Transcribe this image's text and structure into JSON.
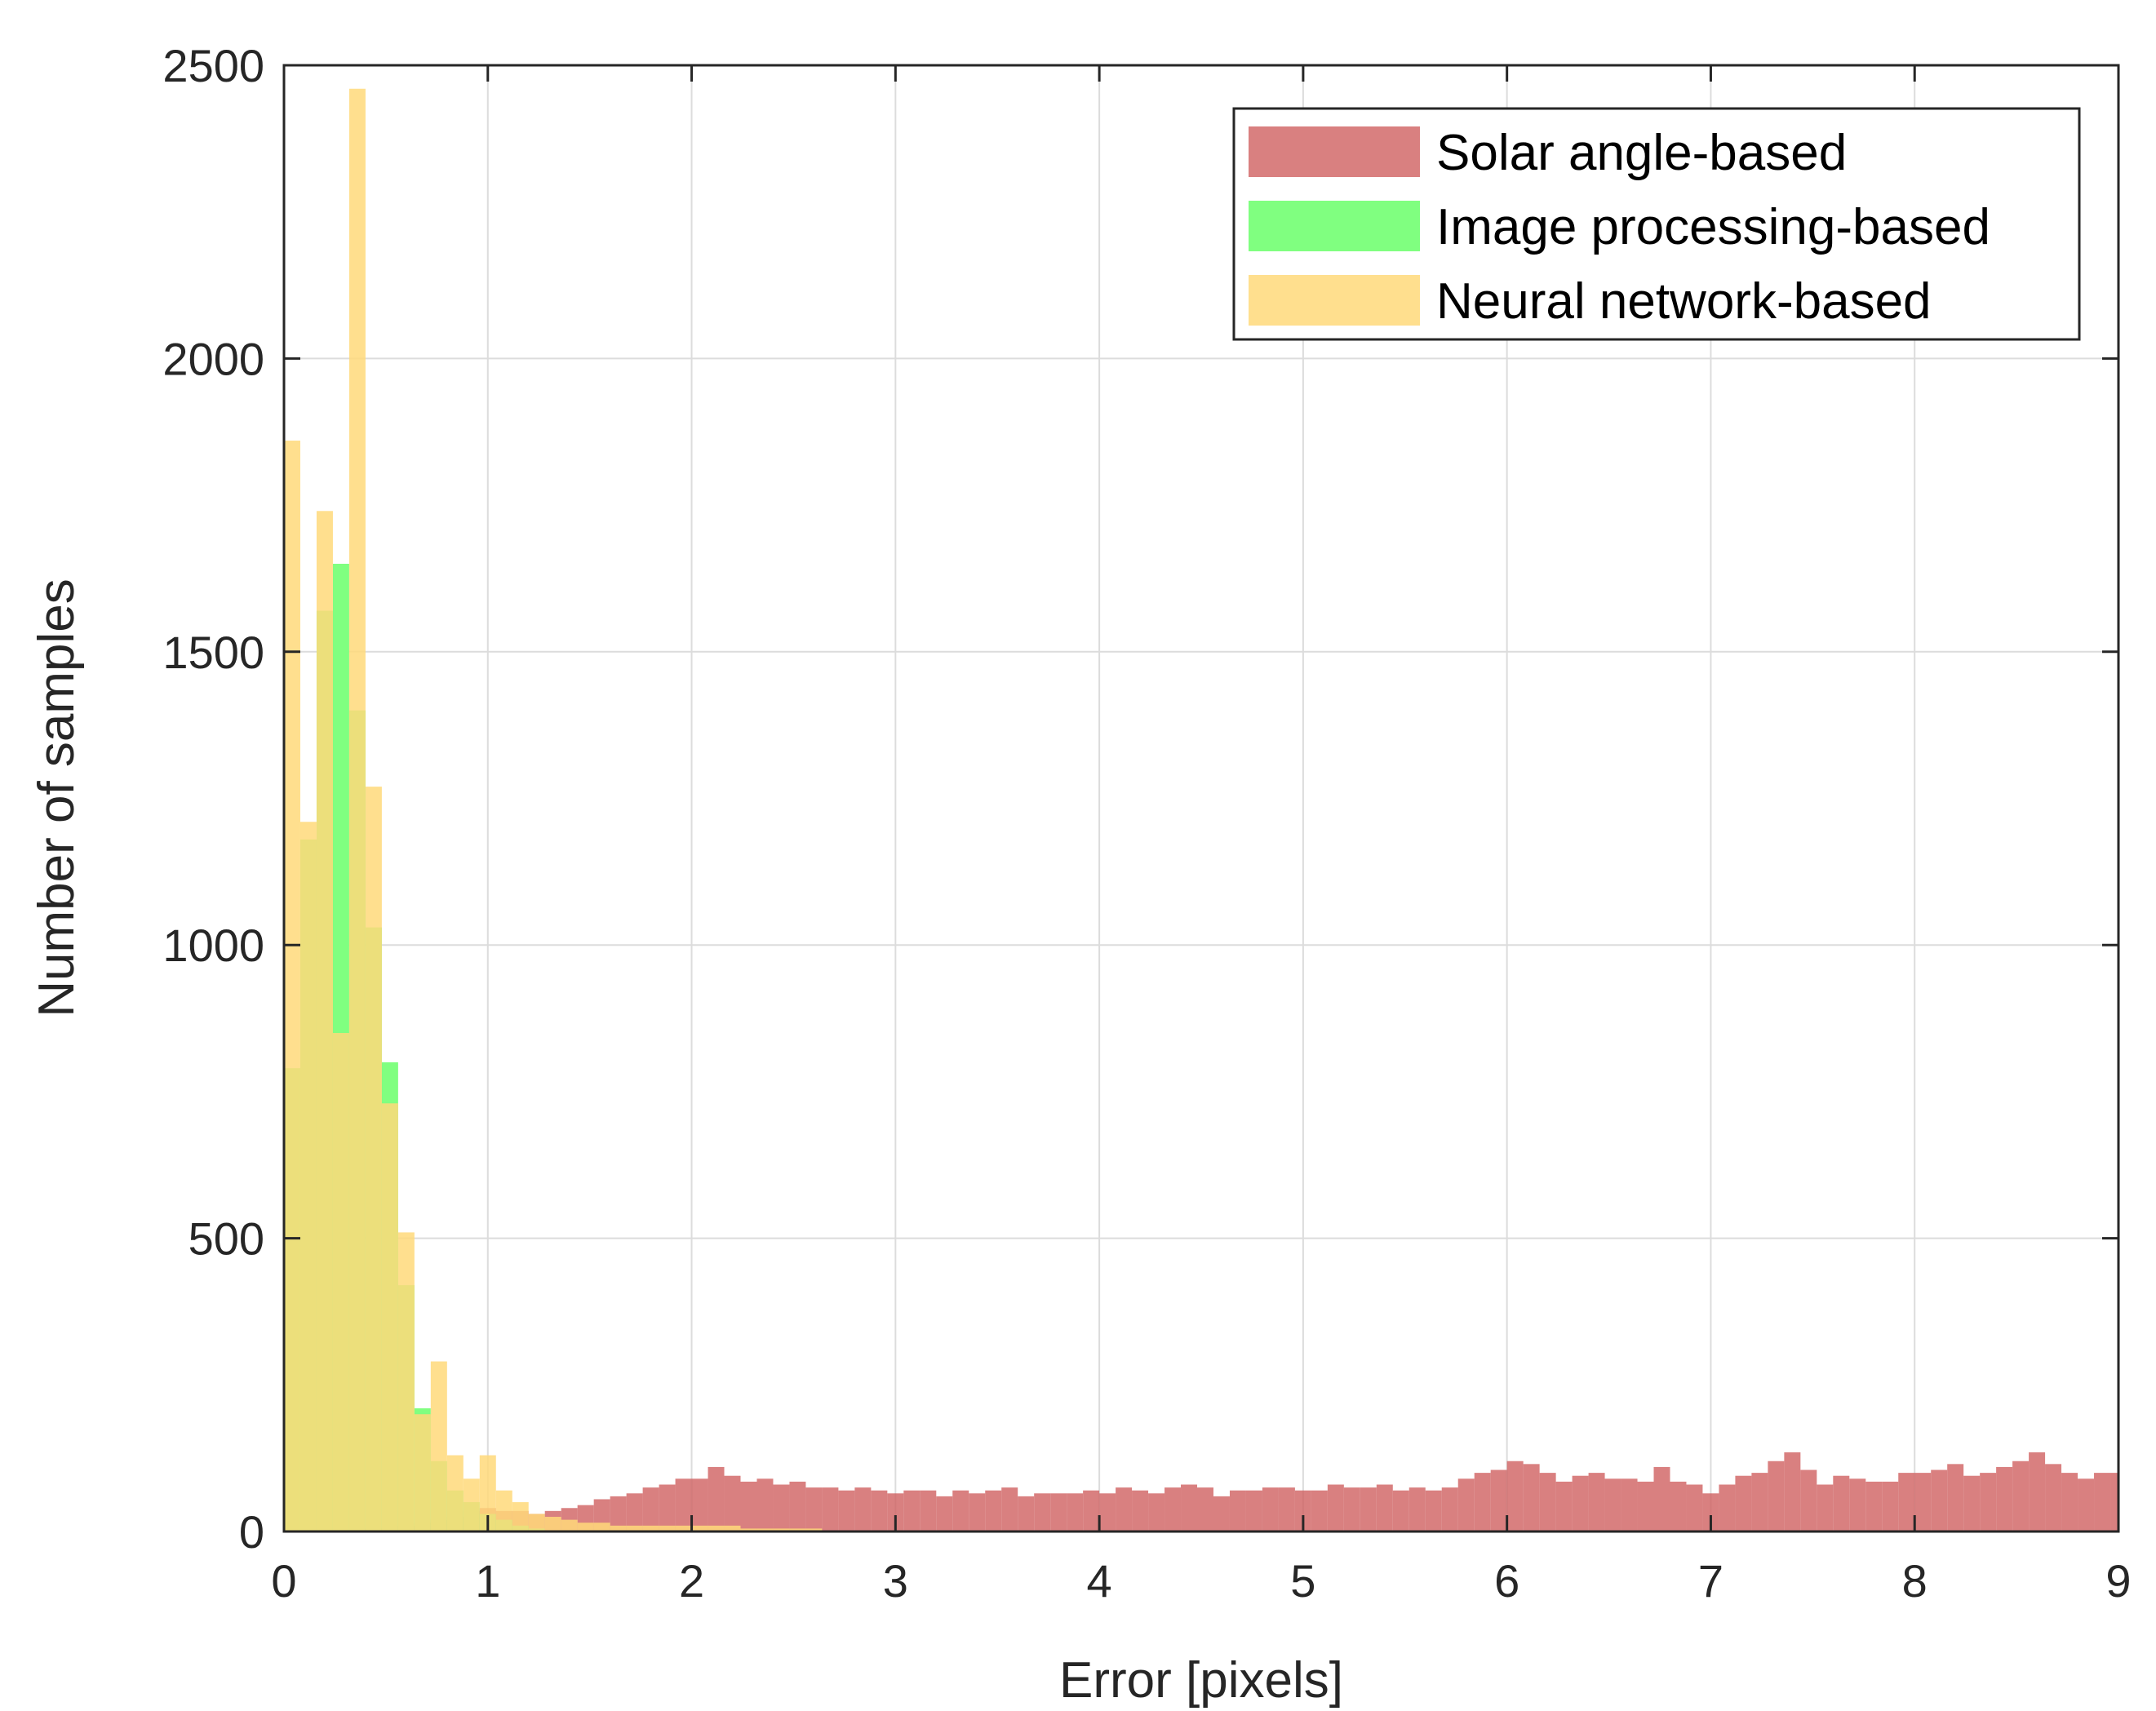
{
  "chart_data": {
    "type": "bar",
    "subtype": "overlapping-histogram",
    "xlabel": "Error [pixels]",
    "ylabel": "Number of samples",
    "xlim": [
      0,
      9
    ],
    "ylim": [
      0,
      2500
    ],
    "x_ticks": [
      "0",
      "1",
      "2",
      "3",
      "4",
      "5",
      "6",
      "7",
      "8",
      "9"
    ],
    "y_ticks": [
      "0",
      "500",
      "1000",
      "1500",
      "2000",
      "2500"
    ],
    "grid": true,
    "legend_position": "top-right",
    "bin_width": 0.08,
    "series": [
      {
        "name": "Solar angle-based",
        "color": "#d06060",
        "opacity": 0.8,
        "bin_start": 0,
        "values": [
          0,
          0,
          0,
          0,
          5,
          5,
          10,
          10,
          15,
          20,
          25,
          35,
          40,
          35,
          35,
          30,
          35,
          40,
          45,
          55,
          60,
          65,
          75,
          80,
          90,
          90,
          110,
          95,
          85,
          90,
          80,
          85,
          75,
          75,
          70,
          75,
          70,
          65,
          70,
          70,
          60,
          70,
          65,
          70,
          75,
          60,
          65,
          65,
          65,
          70,
          65,
          75,
          70,
          65,
          75,
          80,
          75,
          60,
          70,
          70,
          75,
          75,
          70,
          70,
          80,
          75,
          75,
          80,
          70,
          75,
          70,
          75,
          90,
          100,
          105,
          120,
          115,
          100,
          85,
          95,
          100,
          90,
          90,
          85,
          110,
          85,
          80,
          65,
          80,
          95,
          100,
          120,
          135,
          105,
          80,
          95,
          90,
          85,
          85,
          100,
          100,
          105,
          115,
          95,
          100,
          110,
          120,
          135,
          115,
          100,
          90,
          100,
          100,
          95,
          90,
          100,
          75,
          80,
          90,
          100,
          115,
          110,
          95,
          70,
          60,
          40,
          40,
          20,
          10,
          0
        ]
      },
      {
        "name": "Image processing-based",
        "color": "#80ff80",
        "opacity": 1,
        "bin_start": 0,
        "values": [
          790,
          1180,
          1570,
          1650,
          1400,
          1030,
          800,
          420,
          210,
          120,
          70,
          50,
          30,
          20,
          10,
          5,
          0
        ]
      },
      {
        "name": "Neural network-based",
        "color": "#ffd97a",
        "opacity": 0.85,
        "bin_start": 0,
        "values": [
          1860,
          1210,
          1740,
          850,
          2460,
          1270,
          730,
          510,
          200,
          290,
          130,
          90,
          130,
          70,
          50,
          30,
          25,
          20,
          15,
          15,
          10,
          10,
          10,
          10,
          10,
          10,
          10,
          10,
          5,
          5,
          5,
          5,
          5,
          0
        ]
      }
    ]
  }
}
